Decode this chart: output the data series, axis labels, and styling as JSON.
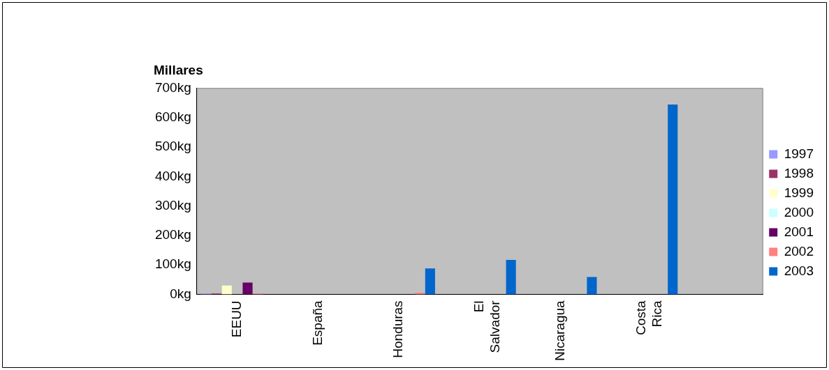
{
  "chart_data": {
    "type": "bar",
    "ylabel": "Millares",
    "categories": [
      "EEUU",
      "España",
      "Honduras",
      "El Salvador",
      "Nicaragua",
      "Costa Rica",
      null
    ],
    "series": [
      {
        "name": "1997",
        "color": "#9999ff",
        "values": [
          3,
          null,
          null,
          null,
          null,
          null,
          null
        ]
      },
      {
        "name": "1998",
        "color": "#993366",
        "values": [
          3,
          null,
          null,
          null,
          null,
          null,
          null
        ]
      },
      {
        "name": "1999",
        "color": "#ffffcc",
        "values": [
          30,
          null,
          null,
          null,
          null,
          null,
          null
        ]
      },
      {
        "name": "2000",
        "color": "#ccffff",
        "values": [
          null,
          null,
          null,
          null,
          null,
          null,
          null
        ]
      },
      {
        "name": "2001",
        "color": "#660066",
        "values": [
          40,
          null,
          null,
          null,
          null,
          null,
          null
        ]
      },
      {
        "name": "2002",
        "color": "#ff8080",
        "values": [
          3,
          null,
          5,
          null,
          null,
          null,
          null
        ]
      },
      {
        "name": "2003",
        "color": "#0066cc",
        "values": [
          null,
          null,
          88,
          117,
          59,
          645,
          null
        ]
      }
    ],
    "ylim": [
      0,
      700
    ],
    "yticks": [
      {
        "value": 0,
        "label": "0kg"
      },
      {
        "value": 100,
        "label": "100kg"
      },
      {
        "value": 200,
        "label": "200kg"
      },
      {
        "value": 300,
        "label": "300kg"
      },
      {
        "value": 400,
        "label": "400kg"
      },
      {
        "value": 500,
        "label": "500kg"
      },
      {
        "value": 600,
        "label": "600kg"
      },
      {
        "value": 700,
        "label": "700kg"
      }
    ],
    "grid": false,
    "legend": "right"
  }
}
